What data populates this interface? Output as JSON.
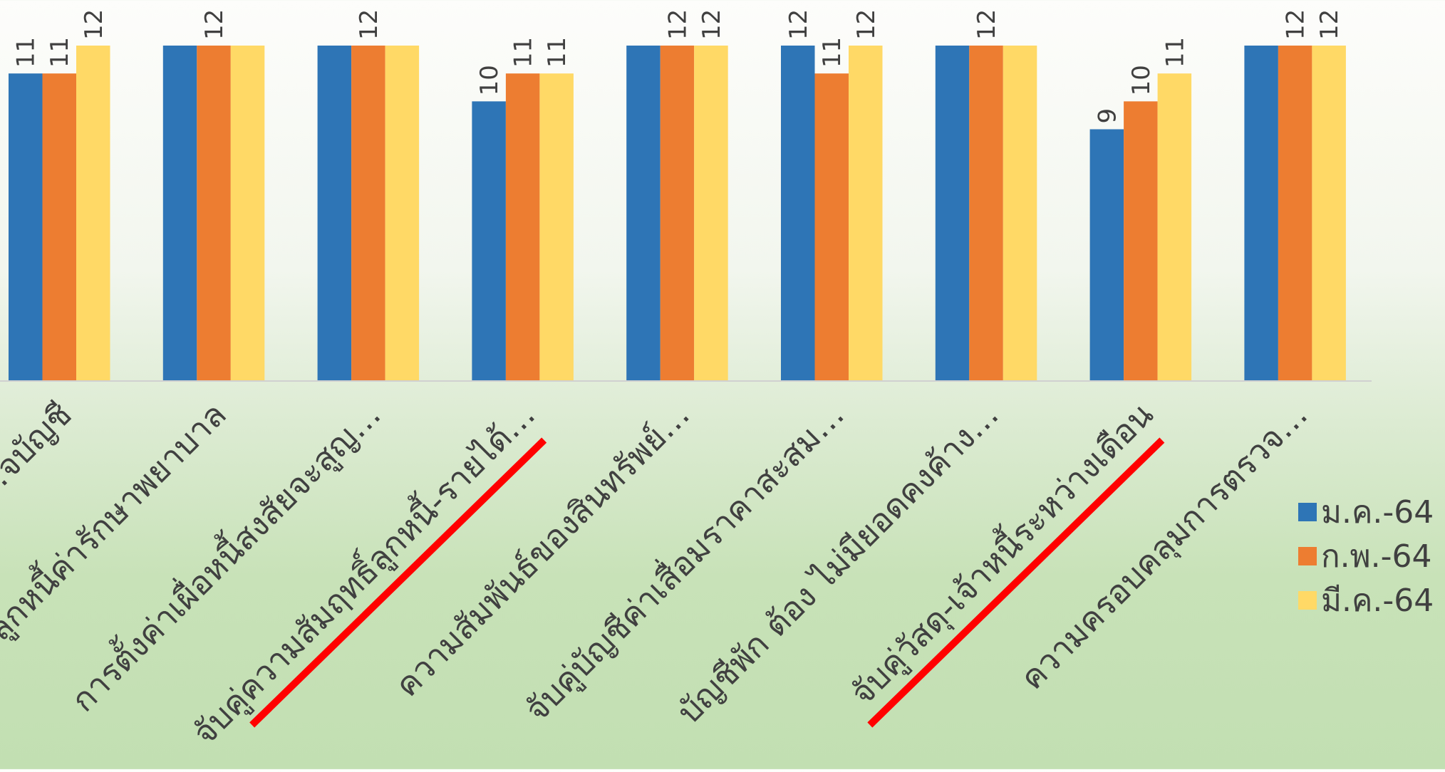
{
  "chart_data": {
    "type": "bar",
    "categories": [
      "…จบัญชี",
      "…ลูกหนี้ค่ารักษาพยาบาล",
      "การตั้งค่าเผื่อหนี้สงสัยจะสูญ…",
      "จับคู่ความสัมฤทธิ์ลูกหนี้-รายได้…",
      "ความสัมพันธ์ของสินทรัพย์…",
      "จับคู่บัญชีค่าเสื่อมราคาสะสม…",
      "บัญชีพัก ต้อง ไม่มียอดคงค้าง…",
      "จับคู่วัสดุ-เจ้าหนี้ระหว่างเดือน",
      "ความครอบคลุมการตรวจ…"
    ],
    "series": [
      {
        "name": "ม.ค.-64",
        "color": "#2e75b6",
        "values": [
          11,
          12,
          12,
          10,
          12,
          12,
          12,
          9,
          12
        ]
      },
      {
        "name": "ก.พ.-64",
        "color": "#ed7d31",
        "values": [
          11,
          12,
          12,
          11,
          12,
          11,
          12,
          10,
          12
        ]
      },
      {
        "name": "มี.ค.-64",
        "color": "#ffd966",
        "values": [
          12,
          12,
          12,
          11,
          12,
          12,
          12,
          11,
          12
        ]
      }
    ],
    "data_labels": [
      [
        11,
        null,
        null,
        10,
        null,
        12,
        null,
        9,
        null
      ],
      [
        11,
        12,
        12,
        11,
        12,
        11,
        12,
        10,
        12
      ],
      [
        12,
        null,
        null,
        11,
        12,
        12,
        null,
        11,
        12
      ]
    ],
    "ylim": [
      0,
      12
    ],
    "grid": false,
    "legend_position": "right",
    "annotations": [
      {
        "type": "strike-line",
        "category_index": 3,
        "color": "#ff0000"
      },
      {
        "type": "strike-line",
        "category_index": 7,
        "color": "#ff0000"
      }
    ]
  },
  "legend": {
    "items": [
      {
        "label": "ม.ค.-64",
        "color": "#2e75b6"
      },
      {
        "label": "ก.พ.-64",
        "color": "#ed7d31"
      },
      {
        "label": "มี.ค.-64",
        "color": "#ffd966"
      }
    ]
  }
}
